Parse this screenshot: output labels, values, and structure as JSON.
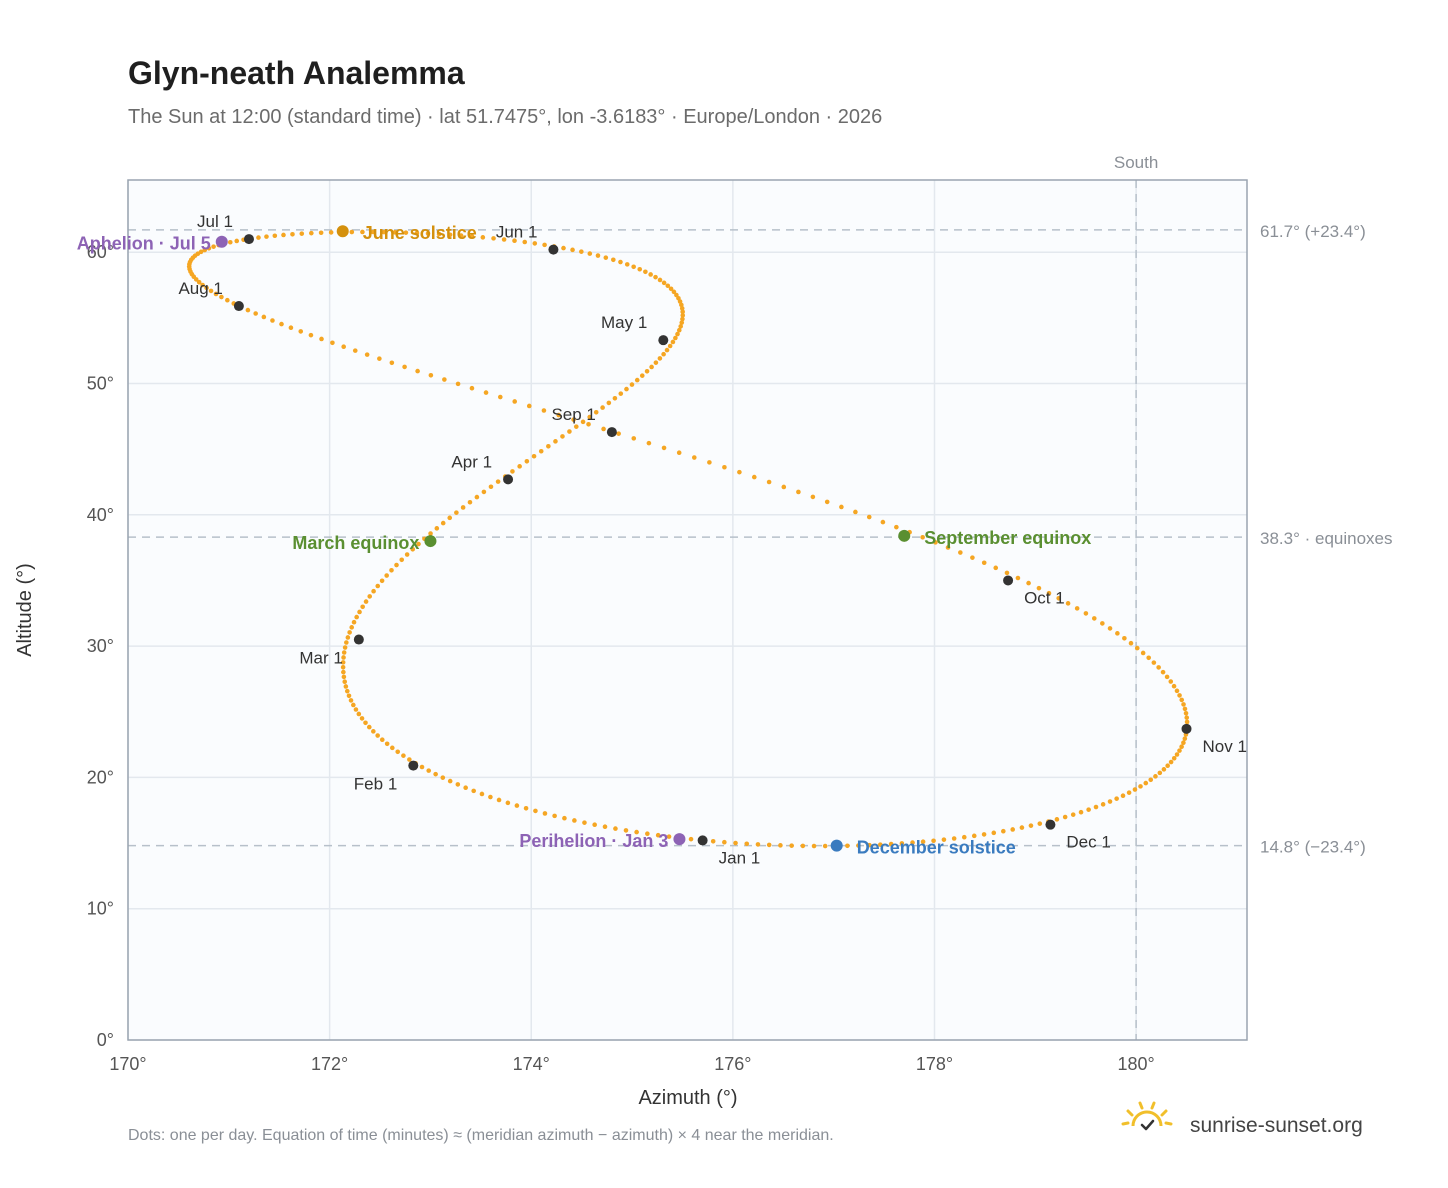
{
  "header": {
    "title": "Glyn-neath Analemma",
    "subtitle": "The Sun at 12:00 (standard time) · lat 51.7475°, lon -3.6183° · Europe/London · 2026"
  },
  "footer": {
    "note": "Dots: one per day. Equation of time (minutes) ≈ (meridian azimuth − azimuth) × 4 near the meridian.",
    "brand": "sunrise-sunset.org",
    "brand_icon": "sun-icon"
  },
  "chart_data": {
    "type": "scatter",
    "xlabel": "Azimuth (°)",
    "ylabel": "Altitude (°)",
    "xlim": [
      170,
      181.1
    ],
    "ylim": [
      0,
      65.5
    ],
    "xticks": [
      170,
      172,
      174,
      176,
      178,
      180
    ],
    "xtick_labels": [
      "170°",
      "172°",
      "174°",
      "176°",
      "178°",
      "180°"
    ],
    "yticks": [
      0,
      10,
      20,
      30,
      40,
      50,
      60
    ],
    "ytick_labels": [
      "0°",
      "10°",
      "20°",
      "30°",
      "40°",
      "50°",
      "60°"
    ],
    "grid": true,
    "meridian": {
      "azimuth": 180,
      "label": "South"
    },
    "reference_lines": [
      {
        "altitude": 61.7,
        "label": "61.7° (+23.4°)"
      },
      {
        "altitude": 38.3,
        "label": "38.3° · equinoxes"
      },
      {
        "altitude": 14.8,
        "label": "14.8° (−23.4°)"
      }
    ],
    "path_color": "#f5a623",
    "month_marker_color": "#333333",
    "month_markers": [
      {
        "label": "Jan 1",
        "az": 175.7,
        "alt": 15.2,
        "pos": "below-right"
      },
      {
        "label": "Feb 1",
        "az": 172.83,
        "alt": 20.9,
        "pos": "below-left"
      },
      {
        "label": "Mar 1",
        "az": 172.29,
        "alt": 30.5,
        "pos": "below-left"
      },
      {
        "label": "Apr 1",
        "az": 173.77,
        "alt": 42.7,
        "pos": "above-left"
      },
      {
        "label": "May 1",
        "az": 175.31,
        "alt": 53.3,
        "pos": "above-left"
      },
      {
        "label": "Jun 1",
        "az": 174.22,
        "alt": 60.2,
        "pos": "above-left"
      },
      {
        "label": "Jul 1",
        "az": 171.2,
        "alt": 61.0,
        "pos": "above-left"
      },
      {
        "label": "Aug 1",
        "az": 171.1,
        "alt": 55.9,
        "pos": "above-left"
      },
      {
        "label": "Sep 1",
        "az": 174.8,
        "alt": 46.3,
        "pos": "above-left"
      },
      {
        "label": "Oct 1",
        "az": 178.73,
        "alt": 35.0,
        "pos": "below-right"
      },
      {
        "label": "Nov 1",
        "az": 180.5,
        "alt": 23.7,
        "pos": "below-right"
      },
      {
        "label": "Dec 1",
        "az": 179.15,
        "alt": 16.4,
        "pos": "below-right"
      }
    ],
    "events": [
      {
        "name": "June solstice",
        "az": 172.13,
        "alt": 61.6,
        "color": "#d4900d",
        "pos": "right"
      },
      {
        "name": "March equinox",
        "az": 173.0,
        "alt": 38.0,
        "color": "#5a8f31",
        "pos": "left"
      },
      {
        "name": "September equinox",
        "az": 177.7,
        "alt": 38.4,
        "color": "#5a8f31",
        "pos": "right"
      },
      {
        "name": "December solstice",
        "az": 177.03,
        "alt": 14.8,
        "color": "#3a7bbf",
        "pos": "right"
      },
      {
        "name": "Perihelion · Jan 3",
        "az": 175.47,
        "alt": 15.3,
        "color": "#8d63b5",
        "pos": "left"
      },
      {
        "name": "Aphelion · Jul 5",
        "az": 170.93,
        "alt": 60.8,
        "color": "#8d63b5",
        "pos": "left"
      }
    ]
  }
}
